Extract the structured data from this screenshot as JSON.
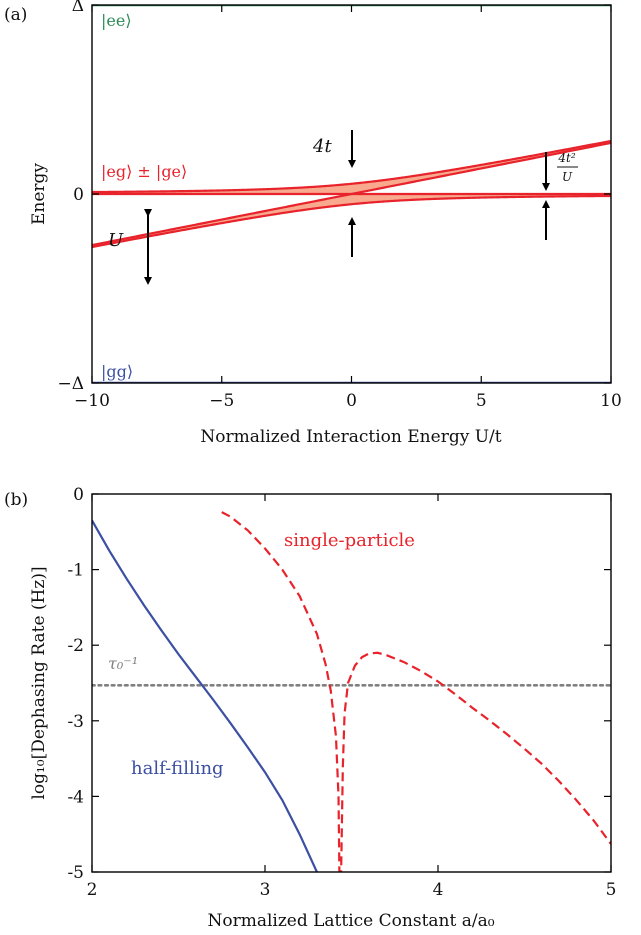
{
  "chart_data": [
    {
      "panel_label": "(a)",
      "type": "line",
      "xlabel": "Normalized Interaction Energy U/t",
      "ylabel": "Energy",
      "xlim": [
        -10,
        10
      ],
      "x_ticks": [
        -10,
        -5,
        0,
        5,
        10
      ],
      "x_tick_labels": [
        "−10",
        "−5",
        "0",
        "5",
        "10"
      ],
      "y_ticks": [
        {
          "value": "Delta",
          "label": "Δ"
        },
        {
          "value": 0,
          "label": "0"
        },
        {
          "value": "-Delta",
          "label": "−Δ"
        }
      ],
      "level_labels": {
        "ee": "|ee⟩",
        "eg": "|eg⟩ ± |ge⟩",
        "gg": "|gg⟩"
      },
      "annotations": {
        "four_t": "4t",
        "U": "U",
        "exchange_num": "4t²",
        "exchange_den": "U"
      },
      "params": {
        "t": 1,
        "delta_over_t": 37
      },
      "colors": {
        "ee": "#2e8b57",
        "eg": "#e8232b",
        "gg": "#3b4fa3",
        "fill": "#f8a98e"
      }
    },
    {
      "panel_label": "(b)",
      "type": "line",
      "xlabel": "Normalized Lattice Constant a/a₀",
      "ylabel": "log₁₀[Dephasing Rate (Hz)]",
      "xlim": [
        2,
        5
      ],
      "ylim": [
        -5,
        0
      ],
      "x_ticks": [
        2,
        3,
        4,
        5
      ],
      "y_ticks": [
        0,
        -1,
        -2,
        -3,
        -4,
        -5
      ],
      "y_tick_labels": [
        "0",
        "-1",
        "-2",
        "-3",
        "-4",
        "-5"
      ],
      "tau_label": "τ₀⁻¹",
      "tau_level": -2.53,
      "series": [
        {
          "name": "half-filling",
          "style": "solid",
          "color": "#3b4fa3",
          "x": [
            2.0,
            2.1,
            2.2,
            2.3,
            2.4,
            2.5,
            2.6,
            2.7,
            2.8,
            2.9,
            3.0,
            3.1,
            3.2,
            3.3
          ],
          "y": [
            -0.35,
            -0.75,
            -1.12,
            -1.47,
            -1.8,
            -2.12,
            -2.42,
            -2.72,
            -3.03,
            -3.35,
            -3.68,
            -4.05,
            -4.5,
            -5.0
          ]
        },
        {
          "name": "single-particle",
          "style": "dashed",
          "color": "#e8232b",
          "x": [
            2.75,
            2.8,
            2.9,
            3.0,
            3.1,
            3.2,
            3.3,
            3.35,
            3.38,
            3.41,
            3.425,
            3.43,
            3.44,
            3.45,
            3.46,
            3.48,
            3.52,
            3.56,
            3.6,
            3.65,
            3.7,
            3.8,
            3.9,
            4.0,
            4.1,
            4.2,
            4.3,
            4.4,
            4.5,
            4.6,
            4.7,
            4.8,
            4.9,
            5.0
          ],
          "y": [
            -0.24,
            -0.3,
            -0.48,
            -0.72,
            -1.0,
            -1.35,
            -1.85,
            -2.25,
            -2.6,
            -3.2,
            -4.0,
            -5.0,
            -5.0,
            -3.6,
            -2.9,
            -2.5,
            -2.27,
            -2.16,
            -2.11,
            -2.1,
            -2.13,
            -2.22,
            -2.34,
            -2.48,
            -2.65,
            -2.83,
            -3.0,
            -3.18,
            -3.37,
            -3.57,
            -3.8,
            -4.05,
            -4.32,
            -4.63
          ]
        }
      ]
    }
  ]
}
